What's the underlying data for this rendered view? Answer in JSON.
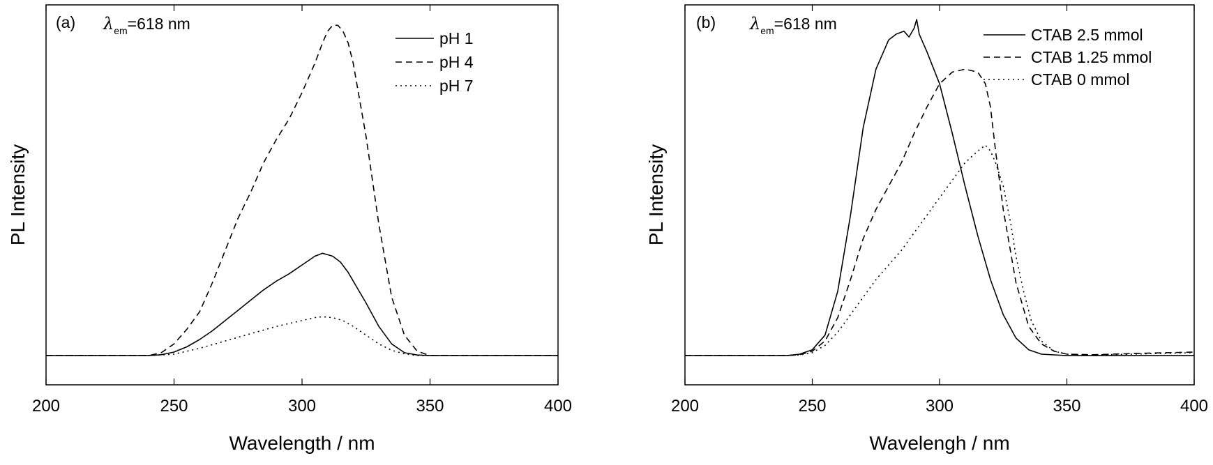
{
  "chart_data": [
    {
      "type": "line",
      "panel_label": "(a)",
      "annotation": {
        "symbol": "λ",
        "subscript": "em",
        "text": "=618 nm"
      },
      "xlabel": "Wavelength / nm",
      "ylabel": "PL Intensity",
      "xlim": [
        200,
        400
      ],
      "ylim": [
        -0.1,
        1.2
      ],
      "xticks": [
        200,
        250,
        300,
        350,
        400
      ],
      "yticks": [],
      "grid": false,
      "legend_position": "top-right",
      "series": [
        {
          "name": "pH 1",
          "style": "solid",
          "x": [
            200,
            240,
            245,
            250,
            255,
            260,
            265,
            270,
            275,
            280,
            285,
            290,
            295,
            300,
            305,
            308,
            310,
            312,
            315,
            318,
            320,
            325,
            330,
            335,
            340,
            345,
            350,
            400
          ],
          "y": [
            0,
            0,
            0.003,
            0.012,
            0.03,
            0.055,
            0.085,
            0.12,
            0.155,
            0.19,
            0.225,
            0.255,
            0.28,
            0.31,
            0.34,
            0.35,
            0.345,
            0.34,
            0.32,
            0.285,
            0.255,
            0.18,
            0.1,
            0.04,
            0.01,
            0.002,
            0,
            0
          ]
        },
        {
          "name": "pH 4",
          "style": "dashed",
          "x": [
            200,
            240,
            245,
            250,
            255,
            260,
            265,
            270,
            275,
            280,
            285,
            290,
            295,
            300,
            305,
            308,
            310,
            312,
            314,
            316,
            318,
            320,
            325,
            330,
            335,
            340,
            345,
            350,
            400
          ],
          "y": [
            0,
            0,
            0.01,
            0.04,
            0.09,
            0.15,
            0.25,
            0.36,
            0.47,
            0.56,
            0.66,
            0.74,
            0.81,
            0.9,
            1.0,
            1.07,
            1.11,
            1.13,
            1.13,
            1.11,
            1.07,
            1.0,
            0.75,
            0.45,
            0.2,
            0.07,
            0.015,
            0,
            0
          ]
        },
        {
          "name": "pH 7",
          "style": "dotted",
          "x": [
            200,
            240,
            250,
            260,
            270,
            280,
            290,
            300,
            305,
            308,
            312,
            316,
            320,
            325,
            330,
            335,
            340,
            345,
            400
          ],
          "y": [
            0,
            0,
            0.005,
            0.025,
            0.05,
            0.075,
            0.1,
            0.12,
            0.13,
            0.133,
            0.13,
            0.12,
            0.1,
            0.07,
            0.04,
            0.018,
            0.006,
            0,
            0
          ]
        }
      ]
    },
    {
      "type": "line",
      "panel_label": "(b)",
      "annotation": {
        "symbol": "λ",
        "subscript": "em",
        "text": "=618 nm"
      },
      "xlabel": "Wavelengh / nm",
      "ylabel": "PL Intensity",
      "xlim": [
        200,
        400
      ],
      "ylim": [
        -0.1,
        1.2
      ],
      "xticks": [
        200,
        250,
        300,
        350,
        400
      ],
      "yticks": [],
      "grid": false,
      "legend_position": "top-right",
      "series": [
        {
          "name": "CTAB 2.5 mmol",
          "style": "solid",
          "x": [
            200,
            240,
            245,
            250,
            255,
            260,
            265,
            270,
            275,
            280,
            283,
            286,
            288,
            290,
            291,
            292,
            295,
            300,
            305,
            310,
            315,
            320,
            325,
            330,
            335,
            340,
            350,
            400
          ],
          "y": [
            0,
            0,
            0.005,
            0.02,
            0.07,
            0.22,
            0.48,
            0.78,
            0.98,
            1.08,
            1.1,
            1.11,
            1.09,
            1.12,
            1.15,
            1.1,
            1.04,
            0.93,
            0.76,
            0.58,
            0.41,
            0.26,
            0.14,
            0.06,
            0.02,
            0.005,
            0,
            0
          ]
        },
        {
          "name": "CTAB 1.25 mmol",
          "style": "dashed",
          "x": [
            200,
            240,
            245,
            250,
            255,
            260,
            265,
            270,
            275,
            280,
            285,
            290,
            295,
            300,
            305,
            310,
            315,
            318,
            320,
            322,
            325,
            330,
            335,
            340,
            345,
            350,
            360,
            380,
            400
          ],
          "y": [
            0,
            0,
            0.003,
            0.015,
            0.05,
            0.13,
            0.26,
            0.4,
            0.5,
            0.58,
            0.66,
            0.76,
            0.85,
            0.93,
            0.97,
            0.98,
            0.97,
            0.93,
            0.85,
            0.7,
            0.5,
            0.25,
            0.1,
            0.04,
            0.015,
            0.005,
            0.003,
            0.008,
            0.012
          ]
        },
        {
          "name": "CTAB 0 mmol",
          "style": "dotted",
          "x": [
            200,
            240,
            245,
            250,
            255,
            260,
            265,
            270,
            275,
            280,
            285,
            290,
            295,
            300,
            305,
            310,
            315,
            318,
            320,
            322,
            325,
            328,
            330,
            333,
            336,
            340,
            345,
            350,
            360,
            380,
            400
          ],
          "y": [
            0,
            0,
            0.002,
            0.01,
            0.035,
            0.08,
            0.14,
            0.2,
            0.26,
            0.31,
            0.36,
            0.42,
            0.48,
            0.54,
            0.6,
            0.66,
            0.7,
            0.72,
            0.7,
            0.66,
            0.58,
            0.45,
            0.34,
            0.22,
            0.12,
            0.05,
            0.015,
            0.005,
            0.002,
            0.006,
            0.01
          ]
        }
      ]
    }
  ]
}
